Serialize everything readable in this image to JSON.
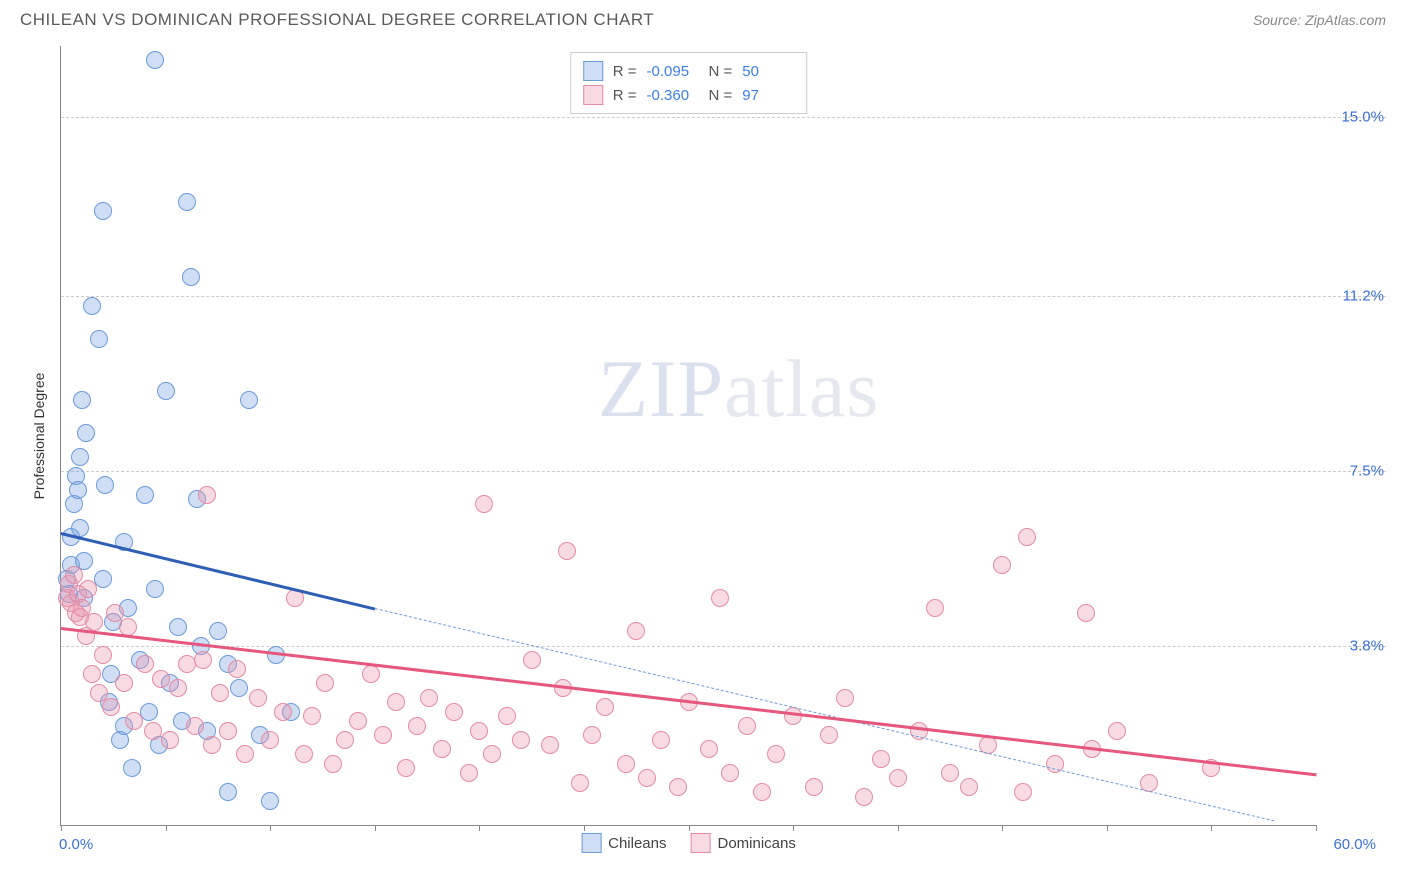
{
  "header": {
    "title": "CHILEAN VS DOMINICAN PROFESSIONAL DEGREE CORRELATION CHART",
    "source": "Source: ZipAtlas.com"
  },
  "chart": {
    "type": "scatter",
    "y_axis_label": "Professional Degree",
    "watermark_a": "ZIP",
    "watermark_b": "atlas",
    "xlim": [
      0,
      60
    ],
    "ylim": [
      0,
      16.5
    ],
    "x_min_label": "0.0%",
    "x_max_label": "60.0%",
    "y_gridlines": [
      3.8,
      7.5,
      11.2,
      15.0
    ],
    "y_labels": [
      "3.8%",
      "7.5%",
      "11.2%",
      "15.0%"
    ],
    "x_ticks": [
      0,
      5,
      10,
      15,
      20,
      25,
      30,
      35,
      40,
      45,
      50,
      55,
      60
    ],
    "background_color": "#ffffff",
    "grid_color": "#cccccc",
    "axis_color": "#888888",
    "marker_radius": 9,
    "marker_stroke_width": 1.5,
    "series": [
      {
        "name": "Chileans",
        "label": "Chileans",
        "fill": "rgba(120,160,225,0.35)",
        "stroke": "#6b9ad8",
        "R": "-0.095",
        "N": "50",
        "trend_color": "#2e5fb5",
        "trend_solid": {
          "x1": 0,
          "y1": 6.2,
          "x2": 15,
          "y2": 4.6
        },
        "trend_dashed": {
          "x1": 15,
          "y1": 4.6,
          "x2": 58,
          "y2": 0.1
        },
        "points": [
          [
            0.3,
            5.2
          ],
          [
            0.4,
            4.9
          ],
          [
            0.5,
            6.1
          ],
          [
            0.5,
            5.5
          ],
          [
            0.6,
            6.8
          ],
          [
            0.7,
            7.4
          ],
          [
            0.8,
            7.1
          ],
          [
            0.9,
            6.3
          ],
          [
            0.9,
            7.8
          ],
          [
            1.0,
            9.0
          ],
          [
            1.1,
            4.8
          ],
          [
            1.1,
            5.6
          ],
          [
            1.2,
            8.3
          ],
          [
            1.5,
            11.0
          ],
          [
            1.8,
            10.3
          ],
          [
            2.0,
            13.0
          ],
          [
            2.0,
            5.2
          ],
          [
            2.1,
            7.2
          ],
          [
            2.3,
            2.6
          ],
          [
            2.4,
            3.2
          ],
          [
            2.5,
            4.3
          ],
          [
            2.8,
            1.8
          ],
          [
            3.0,
            6.0
          ],
          [
            3.0,
            2.1
          ],
          [
            3.2,
            4.6
          ],
          [
            3.4,
            1.2
          ],
          [
            3.8,
            3.5
          ],
          [
            4.0,
            7.0
          ],
          [
            4.2,
            2.4
          ],
          [
            4.5,
            16.2
          ],
          [
            4.5,
            5.0
          ],
          [
            4.7,
            1.7
          ],
          [
            5.0,
            9.2
          ],
          [
            5.2,
            3.0
          ],
          [
            5.6,
            4.2
          ],
          [
            5.8,
            2.2
          ],
          [
            6.0,
            13.2
          ],
          [
            6.2,
            11.6
          ],
          [
            6.5,
            6.9
          ],
          [
            6.7,
            3.8
          ],
          [
            7.0,
            2.0
          ],
          [
            7.5,
            4.1
          ],
          [
            8.0,
            0.7
          ],
          [
            8.0,
            3.4
          ],
          [
            8.5,
            2.9
          ],
          [
            9.0,
            9.0
          ],
          [
            9.5,
            1.9
          ],
          [
            10.0,
            0.5
          ],
          [
            10.3,
            3.6
          ],
          [
            11.0,
            2.4
          ]
        ]
      },
      {
        "name": "Dominicans",
        "label": "Dominicans",
        "fill": "rgba(235,150,175,0.35)",
        "stroke": "#e38ba5",
        "R": "-0.360",
        "N": "97",
        "trend_color": "#e5577d",
        "trend_solid": {
          "x1": 0,
          "y1": 4.2,
          "x2": 60,
          "y2": 1.1
        },
        "trend_dashed": null,
        "points": [
          [
            0.3,
            4.8
          ],
          [
            0.4,
            5.1
          ],
          [
            0.5,
            4.7
          ],
          [
            0.6,
            5.3
          ],
          [
            0.7,
            4.5
          ],
          [
            0.8,
            4.9
          ],
          [
            0.9,
            4.4
          ],
          [
            1.0,
            4.6
          ],
          [
            1.2,
            4.0
          ],
          [
            1.3,
            5.0
          ],
          [
            1.5,
            3.2
          ],
          [
            1.6,
            4.3
          ],
          [
            1.8,
            2.8
          ],
          [
            2.0,
            3.6
          ],
          [
            2.4,
            2.5
          ],
          [
            2.6,
            4.5
          ],
          [
            3.0,
            3.0
          ],
          [
            3.2,
            4.2
          ],
          [
            3.5,
            2.2
          ],
          [
            4.0,
            3.4
          ],
          [
            4.4,
            2.0
          ],
          [
            4.8,
            3.1
          ],
          [
            5.2,
            1.8
          ],
          [
            5.6,
            2.9
          ],
          [
            6.0,
            3.4
          ],
          [
            6.4,
            2.1
          ],
          [
            6.8,
            3.5
          ],
          [
            7.0,
            7.0
          ],
          [
            7.2,
            1.7
          ],
          [
            7.6,
            2.8
          ],
          [
            8.0,
            2.0
          ],
          [
            8.4,
            3.3
          ],
          [
            8.8,
            1.5
          ],
          [
            9.4,
            2.7
          ],
          [
            10.0,
            1.8
          ],
          [
            10.6,
            2.4
          ],
          [
            11.2,
            4.8
          ],
          [
            11.6,
            1.5
          ],
          [
            12.0,
            2.3
          ],
          [
            12.6,
            3.0
          ],
          [
            13.0,
            1.3
          ],
          [
            13.6,
            1.8
          ],
          [
            14.2,
            2.2
          ],
          [
            14.8,
            3.2
          ],
          [
            15.4,
            1.9
          ],
          [
            16.0,
            2.6
          ],
          [
            16.5,
            1.2
          ],
          [
            17.0,
            2.1
          ],
          [
            17.6,
            2.7
          ],
          [
            18.2,
            1.6
          ],
          [
            18.8,
            2.4
          ],
          [
            19.5,
            1.1
          ],
          [
            20.0,
            2.0
          ],
          [
            20.2,
            6.8
          ],
          [
            20.6,
            1.5
          ],
          [
            21.3,
            2.3
          ],
          [
            22.0,
            1.8
          ],
          [
            22.5,
            3.5
          ],
          [
            23.4,
            1.7
          ],
          [
            24.0,
            2.9
          ],
          [
            24.2,
            5.8
          ],
          [
            24.8,
            0.9
          ],
          [
            25.4,
            1.9
          ],
          [
            26.0,
            2.5
          ],
          [
            27.0,
            1.3
          ],
          [
            27.5,
            4.1
          ],
          [
            28.0,
            1.0
          ],
          [
            28.7,
            1.8
          ],
          [
            29.5,
            0.8
          ],
          [
            30.0,
            2.6
          ],
          [
            31.0,
            1.6
          ],
          [
            31.5,
            4.8
          ],
          [
            32.0,
            1.1
          ],
          [
            32.8,
            2.1
          ],
          [
            33.5,
            0.7
          ],
          [
            34.2,
            1.5
          ],
          [
            35.0,
            2.3
          ],
          [
            36.0,
            0.8
          ],
          [
            36.7,
            1.9
          ],
          [
            37.5,
            2.7
          ],
          [
            38.4,
            0.6
          ],
          [
            39.2,
            1.4
          ],
          [
            40.0,
            1.0
          ],
          [
            41.0,
            2.0
          ],
          [
            41.8,
            4.6
          ],
          [
            42.5,
            1.1
          ],
          [
            43.4,
            0.8
          ],
          [
            44.3,
            1.7
          ],
          [
            45.0,
            5.5
          ],
          [
            46.0,
            0.7
          ],
          [
            46.2,
            6.1
          ],
          [
            47.5,
            1.3
          ],
          [
            49.0,
            4.5
          ],
          [
            49.3,
            1.6
          ],
          [
            50.5,
            2.0
          ],
          [
            52.0,
            0.9
          ],
          [
            55.0,
            1.2
          ]
        ]
      }
    ]
  }
}
